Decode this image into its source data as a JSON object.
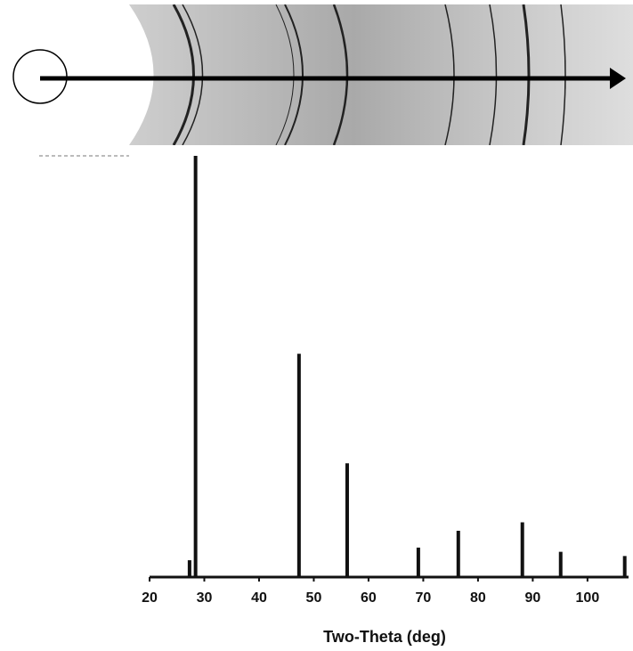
{
  "chart_data": {
    "type": "stem",
    "x_label": "Two-Theta (deg)",
    "x": [
      27.3,
      28.4,
      47.3,
      56.1,
      69.1,
      76.4,
      88.1,
      95.1,
      106.8
    ],
    "values": [
      4,
      100,
      53,
      27,
      7,
      11,
      13,
      6,
      5
    ],
    "color": "#111111",
    "xlim": [
      20,
      107.5
    ],
    "ylim": [
      0,
      100
    ],
    "xticks": [
      20,
      30,
      40,
      50,
      60,
      70,
      80,
      90,
      100
    ]
  }
}
